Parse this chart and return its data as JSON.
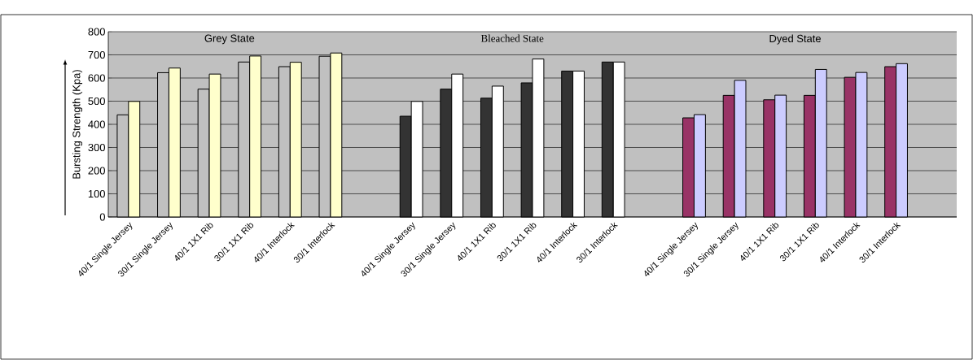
{
  "chart_data": {
    "type": "bar",
    "ylabel": "Bursting Strength (Kpa)",
    "categories": [
      "40/1 Single Jersey",
      "30/1 Single Jersey",
      "40/1 1X1 Rib",
      "30/1 1X1 Rib",
      "40/1 Interlock",
      "30/1 Interlock",
      null,
      "40/1 Single Jersey",
      "30/1 Single Jersey",
      "40/1 1X1 Rib",
      "30/1 1X1 Rib",
      "40/1 Interlock",
      "30/1 Interlock",
      null,
      "40/1 Single Jersey",
      "30/1 Single Jersey",
      "40/1 1X1 Rib",
      "30/1 1X1 Rib",
      "40/1 Interlock",
      "30/1 Interlock",
      null
    ],
    "series": [
      {
        "values": [
          441,
          623,
          552,
          669,
          649,
          694,
          null,
          435,
          552,
          513,
          579,
          630,
          669,
          null,
          428,
          525,
          506,
          525,
          603,
          649,
          null
        ],
        "colors": [
          "#c0c0c0",
          "#c0c0c0",
          "#c0c0c0",
          "#c0c0c0",
          "#c0c0c0",
          "#c0c0c0",
          null,
          "#333333",
          "#333333",
          "#333333",
          "#333333",
          "#333333",
          "#333333",
          null,
          "#993366",
          "#993366",
          "#993366",
          "#993366",
          "#993366",
          "#993366",
          null
        ]
      },
      {
        "values": [
          499,
          643,
          617,
          695,
          668,
          708,
          null,
          499,
          617,
          565,
          682,
          630,
          669,
          null,
          442,
          590,
          526,
          637,
          624,
          662,
          null
        ],
        "colors": [
          "#ffffcc",
          "#ffffcc",
          "#ffffcc",
          "#ffffcc",
          "#ffffcc",
          "#ffffcc",
          null,
          "#ffffff",
          "#ffffff",
          "#ffffff",
          "#ffffff",
          "#ffffff",
          "#ffffff",
          null,
          "#ccccff",
          "#ccccff",
          "#ccccff",
          "#ccccff",
          "#ccccff",
          "#ccccff",
          null
        ]
      }
    ],
    "ylim": [
      0,
      800
    ],
    "yticks": [
      0,
      100,
      200,
      300,
      400,
      500,
      600,
      700,
      800
    ],
    "grid": "y",
    "annotations": [
      "Grey State",
      "Bleached State",
      "Dyed State"
    ]
  }
}
